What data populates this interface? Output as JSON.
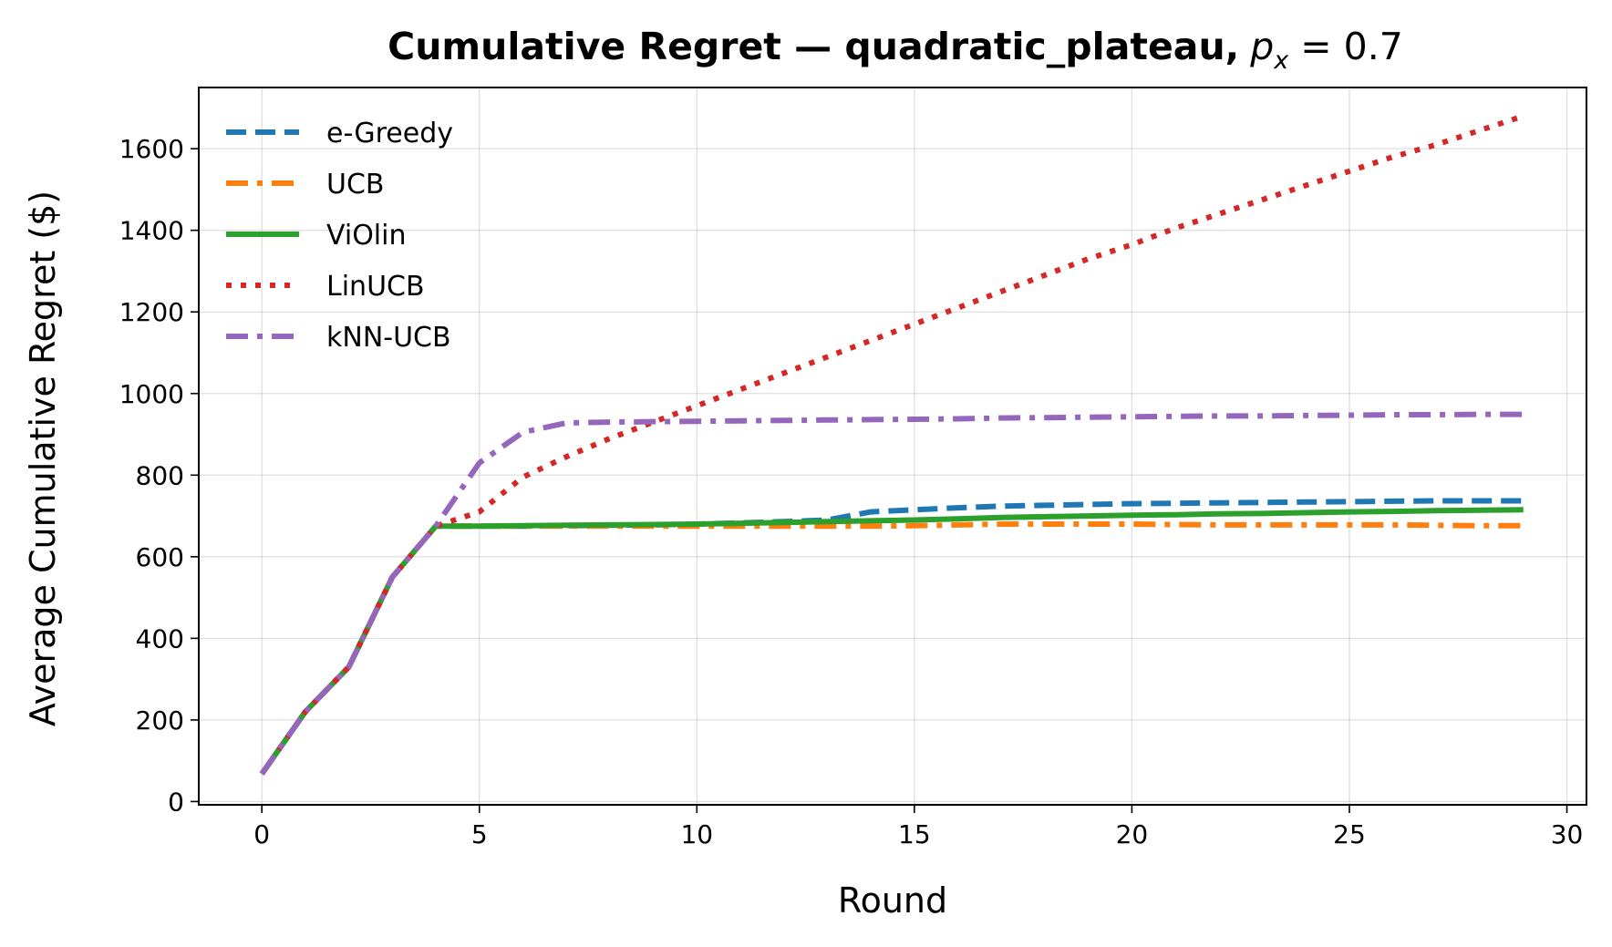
{
  "chart_data": {
    "type": "line",
    "title": "Cumulative Regret — quadratic_plateau,",
    "title_math": {
      "var": "p",
      "sub": "x",
      "rest": " = 0.7"
    },
    "xlabel": "Round",
    "ylabel": "Average Cumulative Regret ($)",
    "xlim": [
      -1.45,
      30.45
    ],
    "ylim": [
      -8,
      1750
    ],
    "xticks": [
      0,
      5,
      10,
      15,
      20,
      25,
      30
    ],
    "yticks": [
      0,
      200,
      400,
      600,
      800,
      1000,
      1200,
      1400,
      1600
    ],
    "grid": true,
    "legend_position": "top-left",
    "x": [
      0,
      1,
      2,
      3,
      4,
      5,
      6,
      7,
      8,
      9,
      10,
      11,
      12,
      13,
      14,
      15,
      16,
      17,
      18,
      19,
      20,
      21,
      22,
      23,
      24,
      25,
      26,
      27,
      28,
      29
    ],
    "series": [
      {
        "name": "e-Greedy",
        "color": "#1f77b4",
        "style": "dashed",
        "values": [
          68,
          220,
          330,
          550,
          675,
          675,
          675,
          676,
          677,
          678,
          680,
          683,
          686,
          690,
          710,
          715,
          720,
          724,
          726,
          728,
          730,
          731,
          732,
          733,
          734,
          735,
          736,
          737,
          737,
          737
        ]
      },
      {
        "name": "UCB",
        "color": "#ff7f0e",
        "style": "dashdot",
        "values": [
          68,
          220,
          330,
          550,
          675,
          675,
          675,
          675,
          675,
          675,
          675,
          675,
          675,
          675,
          675,
          676,
          678,
          680,
          680,
          680,
          680,
          679,
          678,
          678,
          678,
          678,
          678,
          677,
          676,
          676
        ]
      },
      {
        "name": "ViOlin",
        "color": "#2ca02c",
        "style": "solid",
        "values": [
          68,
          220,
          330,
          550,
          675,
          675,
          676,
          677,
          678,
          679,
          680,
          682,
          684,
          686,
          688,
          690,
          693,
          696,
          698,
          700,
          702,
          703,
          705,
          706,
          708,
          710,
          711,
          713,
          714,
          715
        ]
      },
      {
        "name": "LinUCB",
        "color": "#d62728",
        "style": "dotted",
        "values": [
          68,
          220,
          330,
          550,
          675,
          710,
          795,
          845,
          890,
          930,
          970,
          1010,
          1050,
          1090,
          1130,
          1170,
          1210,
          1250,
          1290,
          1330,
          1365,
          1405,
          1440,
          1475,
          1510,
          1545,
          1580,
          1610,
          1645,
          1680
        ]
      },
      {
        "name": "kNN-UCB",
        "color": "#9467bd",
        "style": "dashdot",
        "values": [
          68,
          220,
          330,
          550,
          675,
          830,
          905,
          928,
          930,
          931,
          932,
          933,
          934,
          935,
          936,
          937,
          938,
          940,
          941,
          942,
          943,
          944,
          945,
          945,
          946,
          947,
          948,
          948,
          949,
          949
        ]
      }
    ]
  }
}
